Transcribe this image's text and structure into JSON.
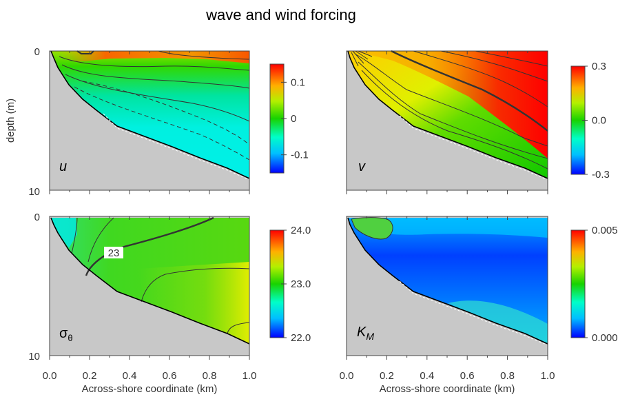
{
  "title": "wave and wind forcing",
  "chart_data": [
    {
      "type": "heatmap",
      "panel": "top-left",
      "label": "u",
      "ylabel": "depth (m)",
      "xlabel": "",
      "xlim": [
        0,
        1.0
      ],
      "ylim": [
        0,
        10
      ],
      "x_ticks": [
        "0.0",
        "0.2",
        "0.4",
        "0.6",
        "0.8",
        "1.0"
      ],
      "y_ticks": [
        "0",
        "10"
      ],
      "colorbar": {
        "range": [
          -0.15,
          0.15
        ],
        "ticks": [
          0.1,
          0,
          -0.1
        ],
        "tick_labels": [
          "0.1",
          "0",
          "-0.1"
        ]
      }
    },
    {
      "type": "heatmap",
      "panel": "top-right",
      "label": "v",
      "xlabel": "",
      "xlim": [
        0,
        1.0
      ],
      "ylim": [
        0,
        10
      ],
      "colorbar": {
        "range": [
          -0.3,
          0.3
        ],
        "ticks": [
          0.3,
          0.0,
          -0.3
        ],
        "tick_labels": [
          "0.3",
          "0.0",
          "-0.3"
        ]
      }
    },
    {
      "type": "heatmap",
      "panel": "bottom-left",
      "label": "σθ",
      "xlabel": "Across-shore coordinate (km)",
      "xlim": [
        0,
        1.0
      ],
      "ylim": [
        0,
        10
      ],
      "x_ticks": [
        "0.0",
        "0.2",
        "0.4",
        "0.6",
        "0.8",
        "1.0"
      ],
      "y_ticks": [
        "0",
        "10"
      ],
      "contour_label": "23",
      "colorbar": {
        "range": [
          22.0,
          24.0
        ],
        "ticks": [
          24.0,
          23.0,
          22.0
        ],
        "tick_labels": [
          "24.0",
          "23.0",
          "22.0"
        ]
      }
    },
    {
      "type": "heatmap",
      "panel": "bottom-right",
      "label": "KM",
      "xlabel": "Across-shore coordinate (km)",
      "xlim": [
        0,
        1.0
      ],
      "ylim": [
        0,
        10
      ],
      "x_ticks": [
        "0.0",
        "0.2",
        "0.4",
        "0.6",
        "0.8",
        "1.0"
      ],
      "colorbar": {
        "range": [
          0.0,
          0.005
        ],
        "ticks": [
          0.005,
          0.0
        ],
        "tick_labels": [
          "0.005",
          "0.000"
        ]
      }
    }
  ],
  "colors": {
    "bottom": "#c8c8c8",
    "contour": "#222222"
  }
}
